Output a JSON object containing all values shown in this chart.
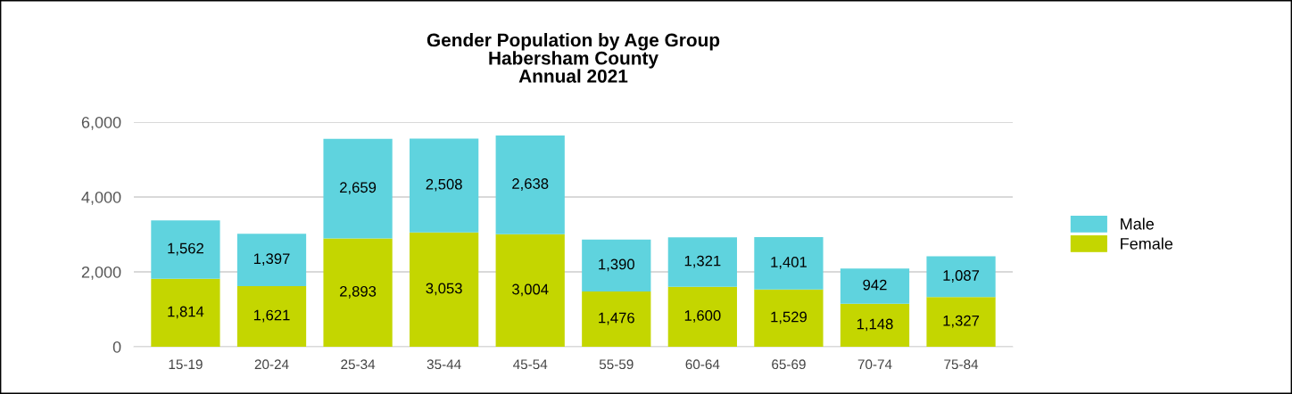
{
  "chart_data": {
    "type": "bar",
    "title": "Gender Population by Age Group\nHabersham County\nAnnual 2021",
    "categories": [
      "15-19",
      "20-24",
      "25-34",
      "35-44",
      "45-54",
      "55-59",
      "60-64",
      "65-69",
      "70-74",
      "75-84"
    ],
    "stacked": true,
    "series": [
      {
        "name": "Female",
        "color": "#c4d600",
        "values": [
          1814,
          1621,
          2893,
          3053,
          3004,
          1476,
          1600,
          1529,
          1148,
          1327
        ],
        "value_labels": [
          "1,814",
          "1,621",
          "2,893",
          "3,053",
          "3,004",
          "1,476",
          "1,600",
          "1,529",
          "1,148",
          "1,327"
        ]
      },
      {
        "name": "Male",
        "color": "#5fd3de",
        "values": [
          1562,
          1397,
          2659,
          2508,
          2638,
          1390,
          1321,
          1401,
          942,
          1087
        ],
        "value_labels": [
          "1,562",
          "1,397",
          "2,659",
          "2,508",
          "2,638",
          "1,390",
          "1,321",
          "1,401",
          "942",
          "1,087"
        ]
      }
    ],
    "ylim": [
      0,
      6000
    ],
    "yticks": [
      {
        "value": 0,
        "label": "0"
      },
      {
        "value": 2000,
        "label": "2,000"
      },
      {
        "value": 4000,
        "label": "4,000"
      },
      {
        "value": 6000,
        "label": "6,000"
      }
    ],
    "grid": "y",
    "legend": "right"
  }
}
